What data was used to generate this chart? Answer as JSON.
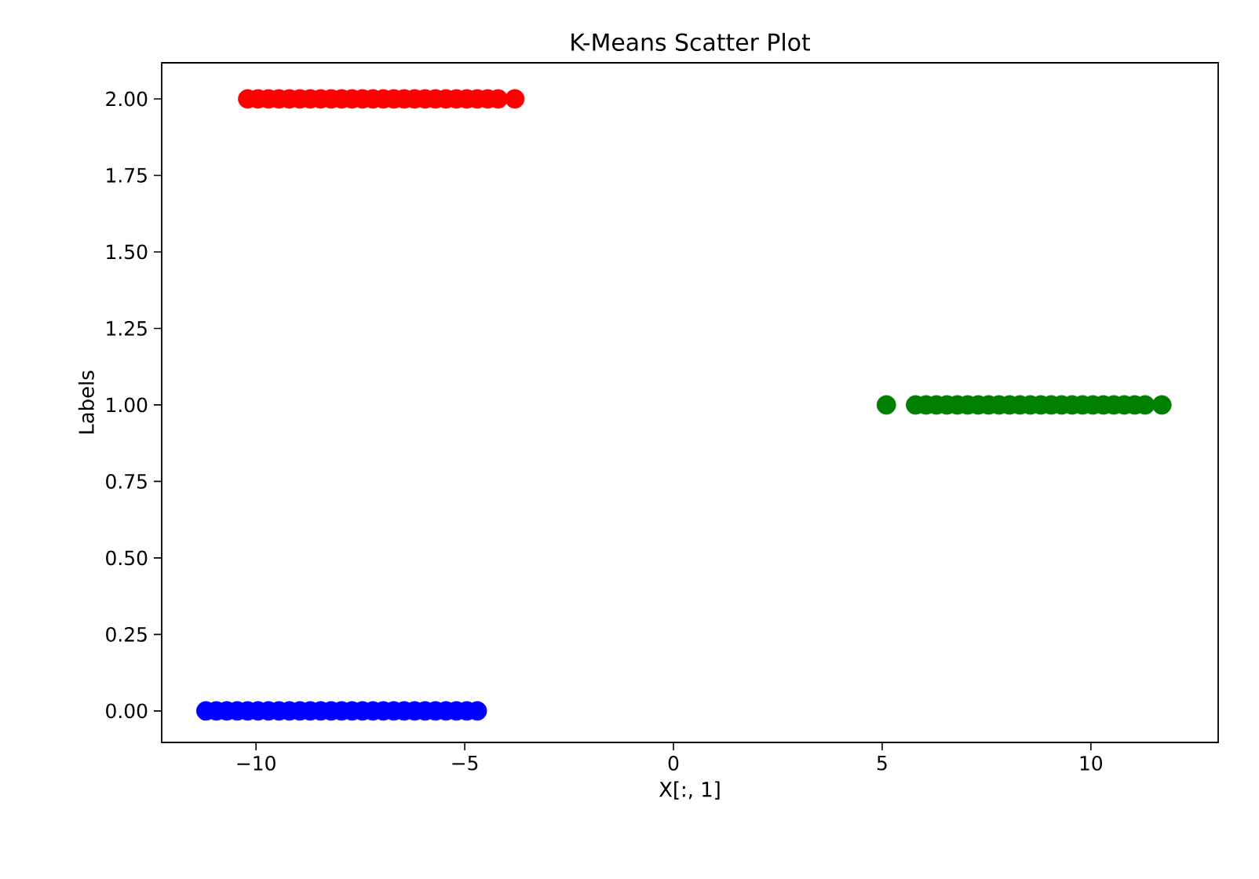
{
  "chart_data": {
    "type": "scatter",
    "title": "K-Means Scatter Plot",
    "xlabel": "X[:, 1]",
    "ylabel": "Labels",
    "xlim": [
      -12.26,
      13.05
    ],
    "ylim": [
      -0.103,
      2.118
    ],
    "xticks": [
      {
        "value": -10,
        "label": "−10"
      },
      {
        "value": -5,
        "label": "−5"
      },
      0,
      5,
      10
    ],
    "yticks": [
      {
        "value": 0,
        "label": "0.00"
      },
      {
        "value": 0.25,
        "label": "0.25"
      },
      {
        "value": 0.5,
        "label": "0.50"
      },
      {
        "value": 0.75,
        "label": "0.75"
      },
      {
        "value": 1,
        "label": "1.00"
      },
      {
        "value": 1.25,
        "label": "1.25"
      },
      {
        "value": 1.5,
        "label": "1.50"
      },
      {
        "value": 1.75,
        "label": "1.75"
      },
      {
        "value": 2,
        "label": "2.00"
      }
    ],
    "grid": false,
    "series": [
      {
        "color": "#0000ff",
        "x": [
          -11.2,
          -10.95,
          -10.7,
          -10.45,
          -10.2,
          -9.95,
          -9.7,
          -9.45,
          -9.2,
          -8.95,
          -8.7,
          -8.45,
          -8.2,
          -7.95,
          -7.7,
          -7.45,
          -7.2,
          -6.95,
          -6.7,
          -6.45,
          -6.2,
          -5.95,
          -5.7,
          -5.45,
          -5.2,
          -4.95,
          -4.7
        ],
        "values": [
          0,
          0,
          0,
          0,
          0,
          0,
          0,
          0,
          0,
          0,
          0,
          0,
          0,
          0,
          0,
          0,
          0,
          0,
          0,
          0,
          0,
          0,
          0,
          0,
          0,
          0,
          0
        ]
      },
      {
        "color": "#008000",
        "x": [
          5.1,
          5.8,
          6.05,
          6.3,
          6.55,
          6.8,
          7.05,
          7.3,
          7.55,
          7.8,
          8.05,
          8.3,
          8.55,
          8.8,
          9.05,
          9.3,
          9.55,
          9.8,
          10.05,
          10.3,
          10.55,
          10.8,
          11.05,
          11.3,
          11.7
        ],
        "values": [
          1,
          1,
          1,
          1,
          1,
          1,
          1,
          1,
          1,
          1,
          1,
          1,
          1,
          1,
          1,
          1,
          1,
          1,
          1,
          1,
          1,
          1,
          1,
          1,
          1
        ]
      },
      {
        "color": "#ff0000",
        "x": [
          -10.2,
          -9.95,
          -9.7,
          -9.45,
          -9.2,
          -8.95,
          -8.7,
          -8.45,
          -8.2,
          -7.95,
          -7.7,
          -7.45,
          -7.2,
          -6.95,
          -6.7,
          -6.45,
          -6.2,
          -5.95,
          -5.7,
          -5.45,
          -5.2,
          -4.95,
          -4.7,
          -4.45,
          -4.2,
          -3.8
        ],
        "values": [
          2,
          2,
          2,
          2,
          2,
          2,
          2,
          2,
          2,
          2,
          2,
          2,
          2,
          2,
          2,
          2,
          2,
          2,
          2,
          2,
          2,
          2,
          2,
          2,
          2,
          2
        ]
      }
    ]
  }
}
